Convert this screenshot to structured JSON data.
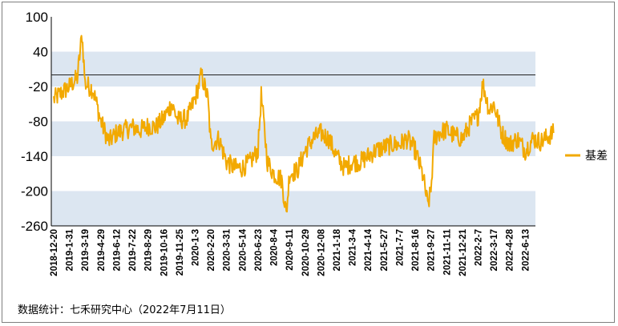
{
  "chart_data": {
    "type": "line",
    "title": "",
    "xlabel": "",
    "ylabel": "",
    "ylim": [
      -260,
      100
    ],
    "yticks": [
      100,
      40,
      -20,
      -80,
      -140,
      -200,
      -260
    ],
    "reference_line": 0,
    "grid": "alternating horizontal bands",
    "legend_position": "right",
    "x_tick_labels": [
      "2018-12-20",
      "2019-1-31",
      "2019-3-19",
      "2019-4-29",
      "2019-6-12",
      "2019-7-22",
      "2019-8-29",
      "2019-10-16",
      "2019-11-25",
      "2020-1-3",
      "2020-2-20",
      "2020-3-31",
      "2020-5-14",
      "2020-6-23",
      "2020-8-4",
      "2020-9-11",
      "2020-10-29",
      "2020-12-08",
      "2021-1-18",
      "2021-3-4",
      "2021-4-14",
      "2021-5-27",
      "2021-7-7",
      "2021-8-16",
      "2021-9-27",
      "2021-11-11",
      "2021-12-21",
      "2022-2-7",
      "2022-3-17",
      "2022-4-28",
      "2022-6-13"
    ],
    "series": [
      {
        "name": "基差",
        "color": "#f2a900",
        "anchors": [
          [
            0,
            -42
          ],
          [
            1,
            -20
          ],
          [
            1.5,
            -5
          ],
          [
            1.8,
            70
          ],
          [
            2,
            -15
          ],
          [
            2.5,
            -25
          ],
          [
            3,
            -80
          ],
          [
            3.5,
            -115
          ],
          [
            4,
            -100
          ],
          [
            4.5,
            -95
          ],
          [
            5,
            -90
          ],
          [
            5.5,
            -95
          ],
          [
            6,
            -88
          ],
          [
            6.5,
            -90
          ],
          [
            7,
            -75
          ],
          [
            7.5,
            -50
          ],
          [
            7.9,
            -78
          ],
          [
            8.5,
            -75
          ],
          [
            9,
            -40
          ],
          [
            9.4,
            0
          ],
          [
            9.8,
            -40
          ],
          [
            10,
            -120
          ],
          [
            10.5,
            -110
          ],
          [
            11,
            -150
          ],
          [
            11.5,
            -160
          ],
          [
            12,
            -160
          ],
          [
            12.5,
            -150
          ],
          [
            13,
            -130
          ],
          [
            13.2,
            -35
          ],
          [
            13.6,
            -150
          ],
          [
            14,
            -170
          ],
          [
            14.5,
            -180
          ],
          [
            14.8,
            -240
          ],
          [
            15,
            -170
          ],
          [
            15.5,
            -165
          ],
          [
            16,
            -130
          ],
          [
            16.5,
            -110
          ],
          [
            17,
            -100
          ],
          [
            17.5,
            -110
          ],
          [
            18,
            -140
          ],
          [
            18.5,
            -160
          ],
          [
            19,
            -150
          ],
          [
            19.5,
            -150
          ],
          [
            20,
            -140
          ],
          [
            20.5,
            -130
          ],
          [
            21,
            -125
          ],
          [
            21.5,
            -120
          ],
          [
            22,
            -120
          ],
          [
            22.5,
            -110
          ],
          [
            23,
            -130
          ],
          [
            23.5,
            -175
          ],
          [
            23.8,
            -225
          ],
          [
            24,
            -200
          ],
          [
            24.2,
            -110
          ],
          [
            24.5,
            -100
          ],
          [
            25,
            -95
          ],
          [
            25.5,
            -105
          ],
          [
            26,
            -110
          ],
          [
            26.5,
            -85
          ],
          [
            27,
            -70
          ],
          [
            27.3,
            -15
          ],
          [
            27.7,
            -60
          ],
          [
            28,
            -50
          ],
          [
            28.5,
            -100
          ],
          [
            29,
            -120
          ],
          [
            29.5,
            -110
          ],
          [
            30,
            -130
          ],
          [
            30.5,
            -110
          ],
          [
            31,
            -115
          ],
          [
            31.5,
            -105
          ],
          [
            31.8,
            -100
          ]
        ]
      }
    ]
  },
  "footer": {
    "source_text": "数据统计：七禾研究中心（2022年7月11日）"
  }
}
